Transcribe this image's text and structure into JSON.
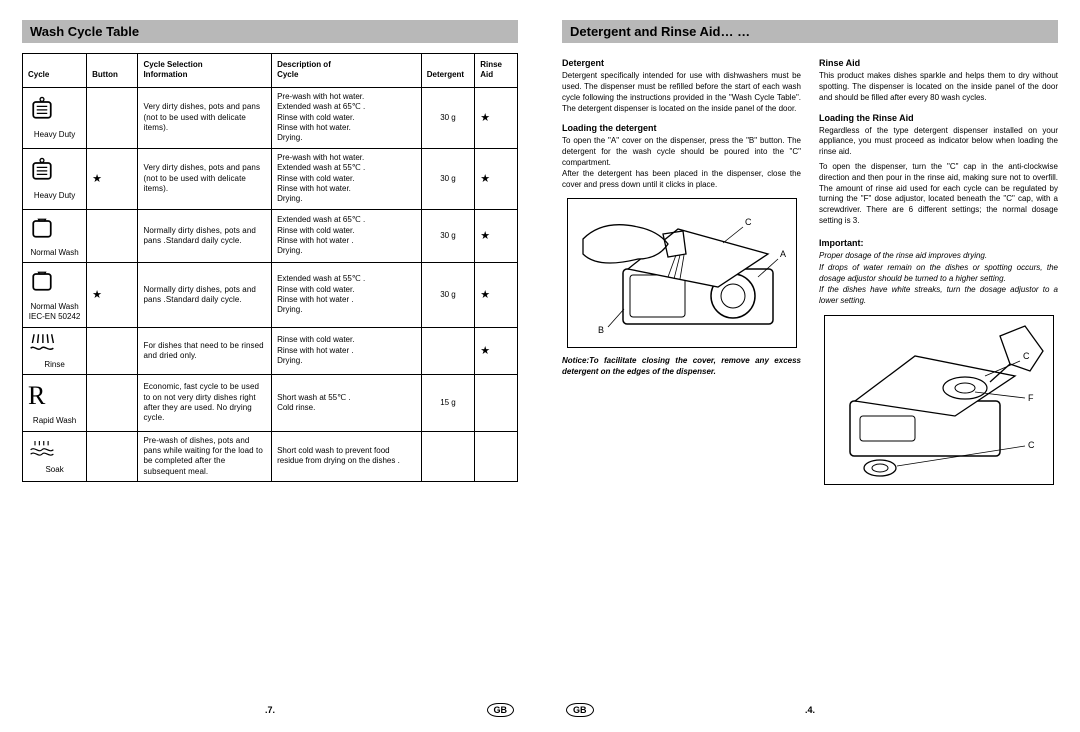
{
  "left": {
    "header": "Wash Cycle Table",
    "columns": {
      "cycle": "Cycle",
      "button": "Button",
      "info_top": "Cycle Selection",
      "info_bottom": "Information",
      "desc_top": "Description of",
      "desc_bottom": "Cycle",
      "detergent": "Detergent",
      "rinse_top": "Rinse",
      "rinse_bottom": "Aid"
    },
    "rows": [
      {
        "icon": "heavy",
        "label": "Heavy Duty",
        "button": "",
        "info": "Very dirty dishes, pots and pans (not to be used with delicate items).",
        "desc": "Pre-wash with hot water.\nExtended wash at 65℃ .\nRinse with cold water.\nRinse with hot water.\nDrying.",
        "detergent": "30 g",
        "rinse": "★"
      },
      {
        "icon": "heavy",
        "label": "Heavy Duty",
        "button": "★",
        "info": "Very dirty dishes, pots and pans (not to be used with delicate items).",
        "desc": "Pre-wash with hot water.\nExtended wash at 55℃ .\nRinse with cold water.\nRinse with hot water.\nDrying.",
        "detergent": "30 g",
        "rinse": "★"
      },
      {
        "icon": "normal",
        "label": "Normal Wash",
        "button": "",
        "info": "Normally dirty dishes, pots and pans .Standard daily cycle.",
        "desc": "Extended wash at 65℃ .\nRinse with cold water.\nRinse with hot water .\nDrying.",
        "detergent": "30 g",
        "rinse": "★"
      },
      {
        "icon": "normal",
        "label": "Normal Wash",
        "label2": "IEC-EN 50242",
        "button": "★",
        "info": "Normally dirty dishes, pots and pans .Standard daily cycle.",
        "desc": "Extended wash at 55℃ .\nRinse with cold water.\nRinse with hot water .\nDrying.",
        "detergent": "30 g",
        "rinse": "★"
      },
      {
        "icon": "rinse",
        "label": "Rinse",
        "button": "",
        "info": "For dishes that need to be rinsed and dried only.",
        "desc": "Rinse with cold water.\nRinse with hot water .\nDrying.",
        "detergent": "",
        "rinse": "★"
      },
      {
        "icon": "rapid",
        "label": "Rapid Wash",
        "button": "",
        "info": "Economic, fast  cycle to be used to on not very dirty dishes right after they are used. No drying cycle.",
        "desc": "Short wash at 55℃ .\nCold rinse.",
        "detergent": "15 g",
        "rinse": ""
      },
      {
        "icon": "soak",
        "label": "Soak",
        "button": "",
        "info": "Pre-wash of dishes, pots and pans while waiting for the load to be completed after the subsequent meal.",
        "desc": "Short cold wash to prevent food residue from drying on the dishes .",
        "detergent": "",
        "rinse": ""
      }
    ],
    "page_number": ".7.",
    "gb": "GB"
  },
  "right": {
    "header": "Detergent and Rinse Aid… …",
    "left_col": {
      "h1": "Detergent",
      "p1": "Detergent specifically intended for use with dishwashers must be used. The dispenser must be refilled before the start of each wash cycle following the instructions provided in the \"Wash Cycle Table\". The detergent dispenser is located on the inside panel of the door.",
      "h2": "Loading the detergent",
      "p2": "To open the \"A\" cover on the dispenser, press the \"B\" button. The detergent for the wash cycle should be poured into the \"C\" compartment.",
      "p3": "After the detergent has been placed in the dispenser, close the cover and press down until it clicks in place.",
      "fig1_labels": {
        "A": "A",
        "B": "B",
        "C": "C"
      },
      "notice": "Notice:To facilitate closing the cover, remove any excess detergent on the edges of the dispenser."
    },
    "right_col": {
      "h1": "Rinse Aid",
      "p1": "This product makes dishes sparkle and helps them to dry without spotting. The dispenser is located on the inside panel of the door and should be filled after every 80 wash cycles.",
      "h2": "Loading the Rinse Aid",
      "p2": "Regardless of the type detergent dispenser installed on your appliance, you must proceed as indicator below when loading the rinse aid.",
      "p3": "To open the dispenser, turn the \"C\" cap in the anti-clockwise direction and then pour in the rinse aid, making sure not to overfill. The amount of rinse aid used for each cycle can be regulated by turning the \"F\" dose adjustor, located beneath the \"C\" cap, with a screwdriver. There are 6 different settings; the normal dosage setting is 3.",
      "h3": "Important:",
      "imp": [
        "Proper dosage of the rinse aid improves drying.",
        "If drops of water remain on the dishes or spotting occurs, the dosage adjustor should be turned to a higher setting.",
        "If the dishes have white streaks, turn the dosage adjustor to a lower setting."
      ],
      "fig2_labels": {
        "C1": "C",
        "F": "F",
        "C2": "C"
      }
    },
    "page_number": ".4.",
    "gb": "GB"
  }
}
